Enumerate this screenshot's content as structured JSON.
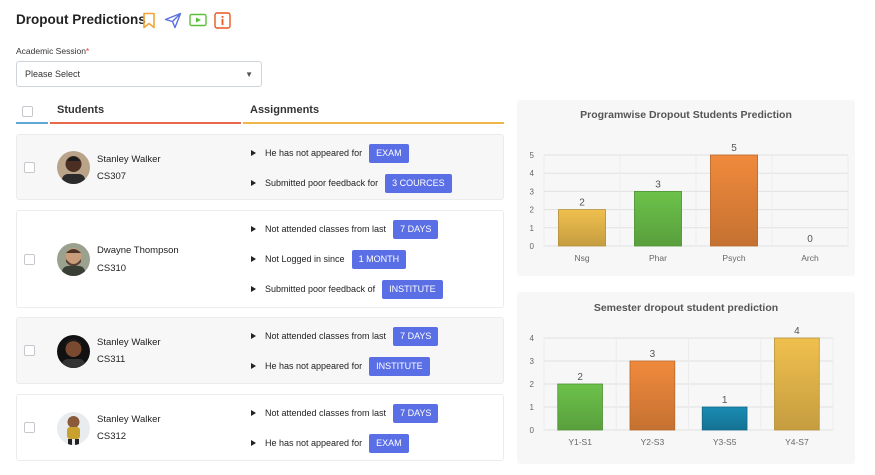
{
  "header": {
    "title": "Dropout Predictions",
    "colors": {
      "bookmark": "#f0a43a",
      "send": "#5a6fe6",
      "video": "#5cbf3a",
      "info": "#e8571f"
    }
  },
  "session": {
    "label": "Academic Session",
    "required_mark": "*",
    "value": "Please Select"
  },
  "table": {
    "col_students": "Students",
    "col_assignments": "Assignments",
    "rows": [
      {
        "name": "Stanley Walker",
        "code": "CS307",
        "items": [
          {
            "text": "He has not appeared for",
            "badge": "EXAM"
          },
          {
            "text": "Submitted poor feedback for",
            "badge": "3 COURCES"
          }
        ]
      },
      {
        "name": "Dwayne Thompson",
        "code": "CS310",
        "items": [
          {
            "text": "Not attended classes from last",
            "badge": "7 DAYS"
          },
          {
            "text": "Not Logged in since",
            "badge": "1 MONTH"
          },
          {
            "text": "Submitted poor feedback of",
            "badge": "INSTITUTE"
          }
        ]
      },
      {
        "name": "Stanley Walker",
        "code": "CS311",
        "items": [
          {
            "text": "Not attended classes from last",
            "badge": "7 DAYS"
          },
          {
            "text": "He has not appeared for",
            "badge": "INSTITUTE"
          }
        ]
      },
      {
        "name": "Stanley Walker",
        "code": "CS312",
        "items": [
          {
            "text": "Not attended classes from last",
            "badge": "7 DAYS"
          },
          {
            "text": "He has not appeared for",
            "badge": "EXAM"
          }
        ]
      }
    ]
  },
  "chart_data": [
    {
      "type": "bar",
      "title": "Programwise Dropout Students Prediction",
      "categories": [
        "Nsg",
        "Phar",
        "Psych",
        "Arch"
      ],
      "values": [
        2,
        3,
        5,
        0
      ],
      "ylim": [
        0,
        5
      ],
      "yticks": [
        0,
        1,
        2,
        3,
        4,
        5
      ],
      "grid": true,
      "colors": [
        "#f0c04e",
        "#6cc24a",
        "#f08a3c",
        "#cccccc"
      ]
    },
    {
      "type": "bar",
      "title": "Semester dropout student prediction",
      "categories": [
        "Y1-S1",
        "Y2-S3",
        "Y3-S5",
        "Y4-S7"
      ],
      "values": [
        2,
        3,
        1,
        4
      ],
      "ylim": [
        0,
        4
      ],
      "yticks": [
        0,
        1,
        2,
        3,
        4
      ],
      "grid": true,
      "colors": [
        "#6cc24a",
        "#f08a3c",
        "#1a8bb3",
        "#f0c04e"
      ]
    }
  ]
}
